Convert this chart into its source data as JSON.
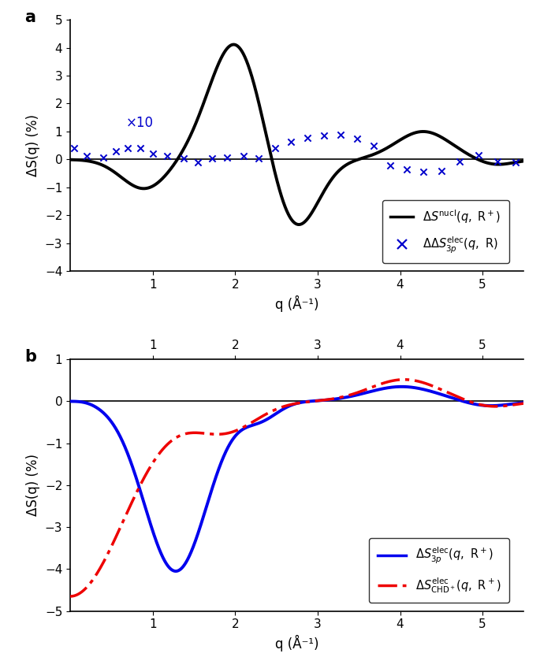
{
  "panel_a": {
    "ylabel": "ΔS(q) (%)",
    "xlabel": "q (Å⁻¹)",
    "ylim": [
      -4,
      5
    ],
    "xlim": [
      0,
      5.5
    ],
    "yticks": [
      -4,
      -3,
      -2,
      -1,
      0,
      1,
      2,
      3,
      4,
      5
    ],
    "xticks": [
      1,
      2,
      3,
      4,
      5
    ],
    "x10_label": "×10",
    "cross_color": "#0000CC",
    "line_color": "#000000"
  },
  "panel_b": {
    "ylabel": "ΔS(q) (%)",
    "xlabel": "q (Å⁻¹)",
    "ylim": [
      -5,
      1
    ],
    "xlim": [
      0,
      5.5
    ],
    "yticks": [
      -5,
      -4,
      -3,
      -2,
      -1,
      0,
      1
    ],
    "xticks": [
      1,
      2,
      3,
      4,
      5
    ],
    "blue_color": "#0000EE",
    "red_color": "#EE0000"
  }
}
